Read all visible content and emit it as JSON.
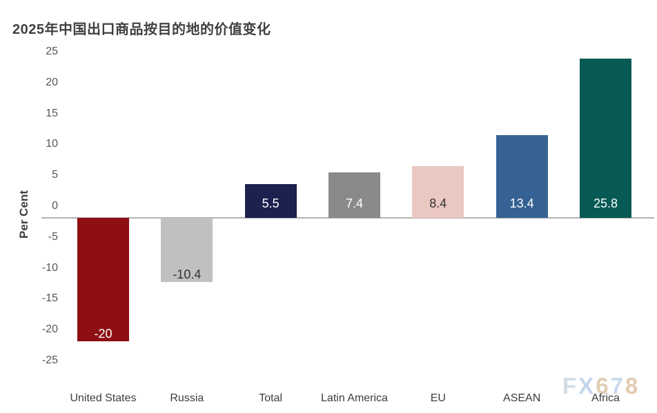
{
  "header": {
    "title": "2025年中国出口商品按目的地的价值变化"
  },
  "y_axis": {
    "title": "Per Cent"
  },
  "watermark": {
    "text": "FX678",
    "letters": [
      {
        "char": "F",
        "color": "#d2dce6"
      },
      {
        "char": "X",
        "color": "#c3d7eb"
      },
      {
        "char": "6",
        "color": "#e2ccb5"
      },
      {
        "char": "7",
        "color": "#c9d9ec"
      },
      {
        "char": "8",
        "color": "#e1cbb3"
      }
    ]
  },
  "chart_data": {
    "type": "bar",
    "title": "2025年中国出口商品按目的地的价值变化",
    "xlabel": "",
    "ylabel": "Per Cent",
    "categories": [
      "United States",
      "Russia",
      "Total",
      "Latin America",
      "EU",
      "ASEAN",
      "Africa"
    ],
    "values": [
      -20,
      -10.4,
      5.5,
      7.4,
      8.4,
      13.4,
      25.8
    ],
    "data_labels": [
      "-20",
      "-10.4",
      "5.5",
      "7.4",
      "8.4",
      "13.4",
      "25.8"
    ],
    "bar_colors": [
      "#8E0F12",
      "#C0C0C0",
      "#1C2150",
      "#8A8A8A",
      "#EBC7C1",
      "#366293",
      "#065A53"
    ],
    "label_text_colors": [
      "#ffffff",
      "#333333",
      "#ffffff",
      "#ffffff",
      "#333333",
      "#ffffff",
      "#ffffff"
    ],
    "ylim": [
      -25,
      25
    ],
    "yticks": [
      25,
      20,
      15,
      10,
      5,
      0,
      -5,
      -10,
      -15,
      -20,
      -25
    ],
    "grid": false,
    "legend": false,
    "baseline_color": "#b2b2b2",
    "axis_text_color": "#565656"
  }
}
